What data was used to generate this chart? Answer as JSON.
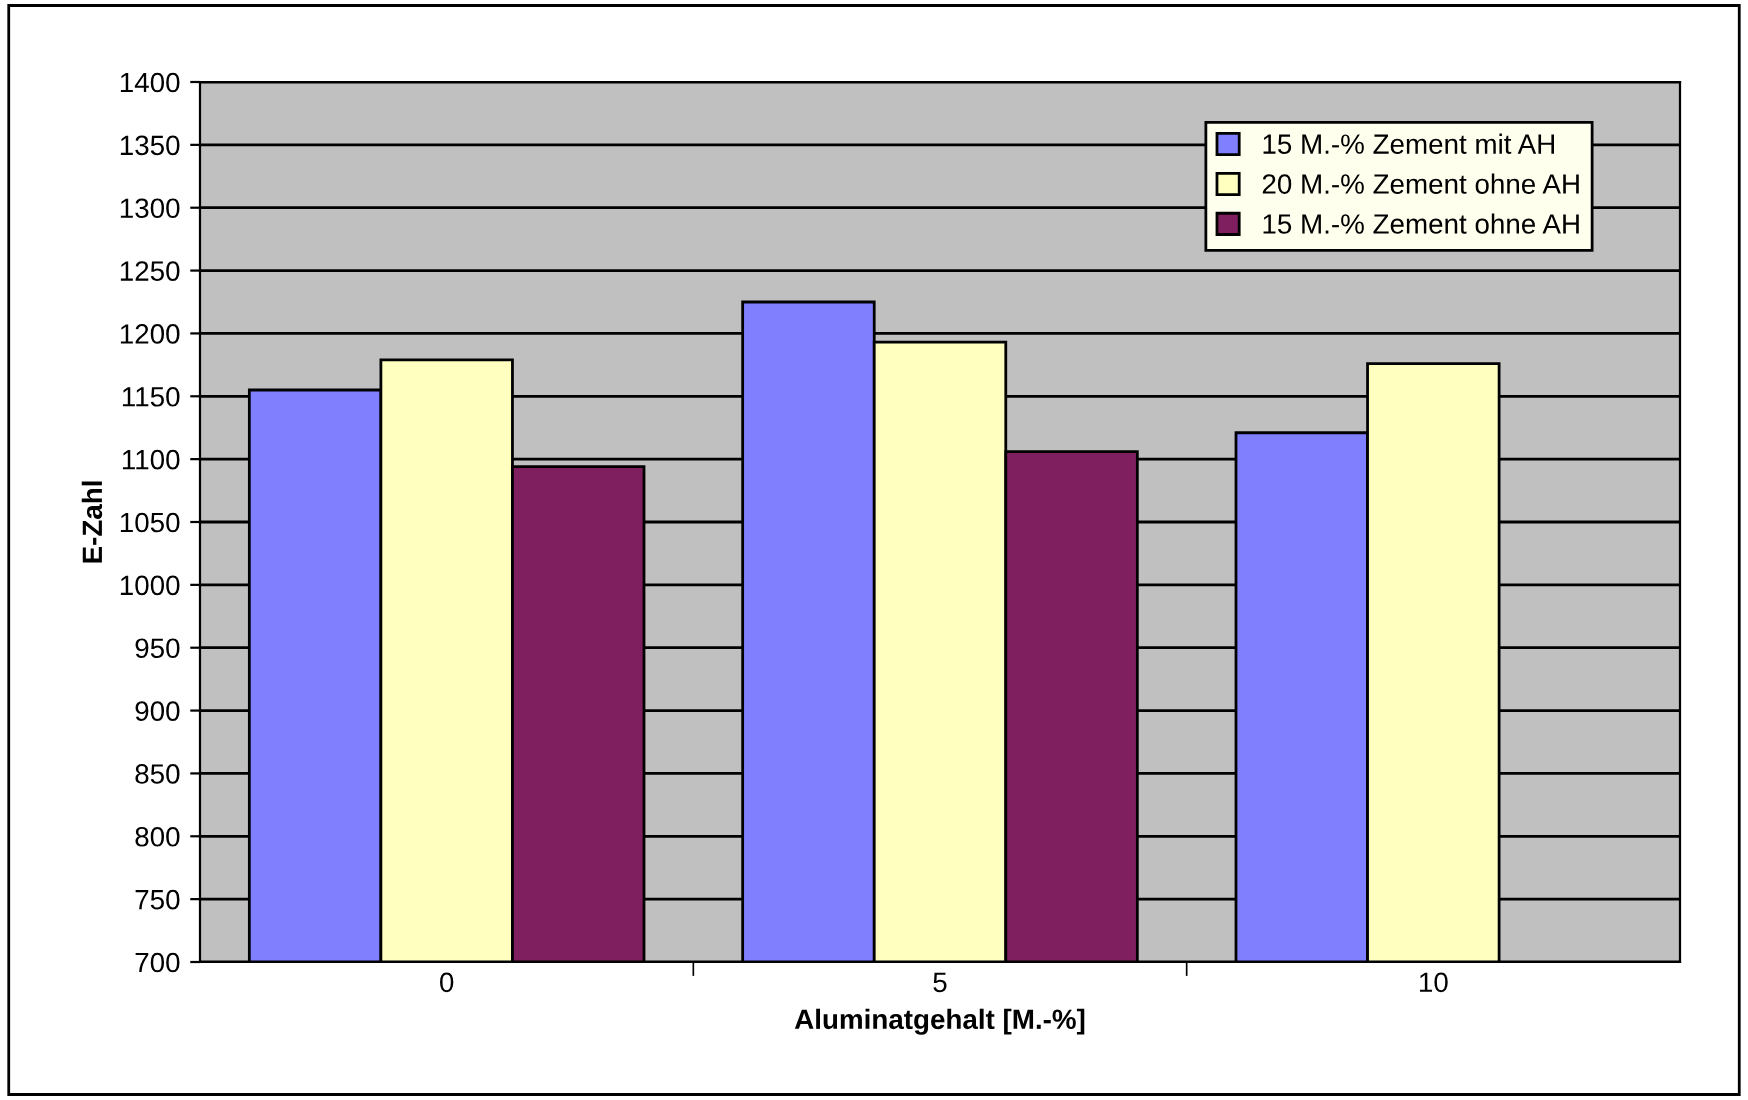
{
  "chart_data": {
    "type": "bar",
    "xlabel": "Aluminatgehalt [M.-%]",
    "ylabel": "E-Zahl",
    "categories": [
      "0",
      "5",
      "10"
    ],
    "series": [
      {
        "name": "15 M.-% Zement mit AH",
        "color": "#8080ff",
        "values": [
          1155,
          1225,
          1121
        ]
      },
      {
        "name": "20 M.-% Zement ohne AH",
        "color": "#ffffc0",
        "values": [
          1179,
          1193,
          1176
        ]
      },
      {
        "name": "15 M.-% Zement ohne AH",
        "color": "#7f1f5f",
        "values": [
          1094,
          1106,
          null
        ]
      }
    ],
    "ylim": [
      700,
      1400
    ],
    "yticks": [
      700,
      750,
      800,
      850,
      900,
      950,
      1000,
      1050,
      1100,
      1150,
      1200,
      1250,
      1300,
      1350,
      1400
    ],
    "grid": "y",
    "legend": "top right"
  }
}
